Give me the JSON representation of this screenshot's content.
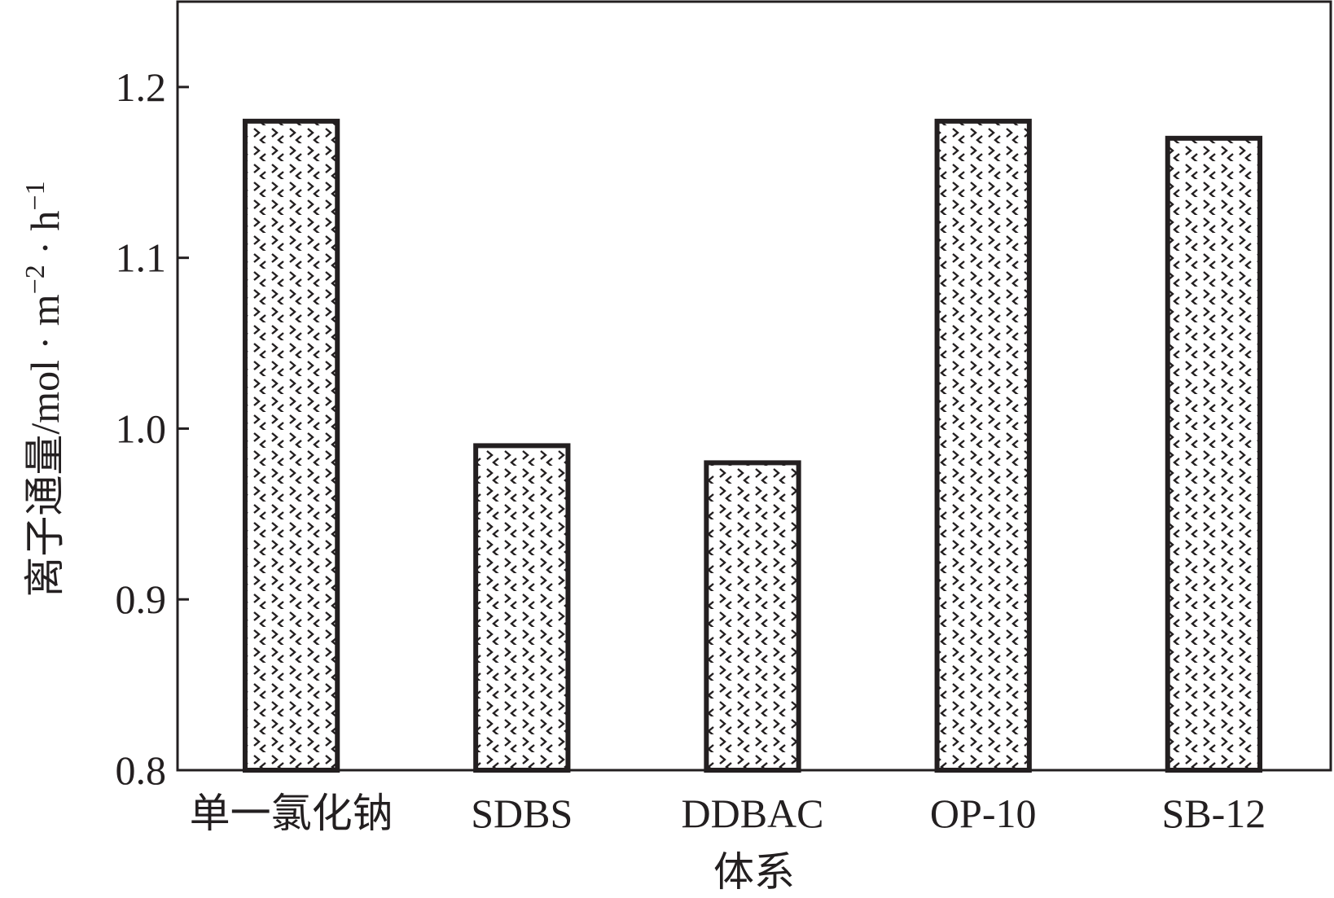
{
  "chart_data": {
    "type": "bar",
    "categories": [
      "单一氯化钠",
      "SDBS",
      "DDBAC",
      "OP-10",
      "SB-12"
    ],
    "values": [
      1.18,
      0.99,
      0.98,
      1.18,
      1.17
    ],
    "xlabel": "体系",
    "ylabel": "离子通量/mol · m",
    "ylabel_unit_parts": {
      "m_exp": "−2",
      "mid": " · h",
      "h_exp": "−1"
    },
    "ylim": [
      0.8,
      1.25
    ],
    "yticks": [
      0.8,
      0.9,
      1.0,
      1.1,
      1.2
    ],
    "ytick_labels": [
      "0.8",
      "0.9",
      "1.0",
      "1.1",
      "1.2"
    ],
    "grid": false,
    "bar_pattern": "chevron-hatch",
    "colors": {
      "ink": "#231f20",
      "background": "#ffffff"
    }
  }
}
